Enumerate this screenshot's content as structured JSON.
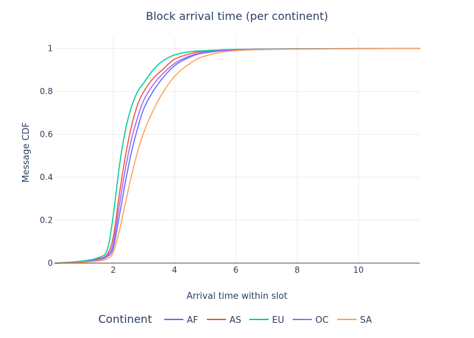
{
  "chart_data": {
    "type": "line",
    "title": "Block arrival time (per continent)",
    "xlabel": "Arrival time within slot",
    "ylabel": "Message CDF",
    "xlim": [
      0.1,
      12
    ],
    "ylim": [
      0,
      1.05
    ],
    "xticks": [
      2,
      4,
      6,
      8,
      10
    ],
    "yticks": [
      0,
      0.2,
      0.4,
      0.6,
      0.8,
      1
    ],
    "xtick_labels": [
      "2",
      "4",
      "6",
      "8",
      "10"
    ],
    "ytick_labels": [
      "0",
      "0.2",
      "0.4",
      "0.6",
      "0.8",
      "1"
    ],
    "grid": true,
    "legend": {
      "title": "Continent",
      "placement": "bottom"
    },
    "series": [
      {
        "name": "AF",
        "color": "#636efa",
        "x": [
          0.1,
          1.0,
          1.5,
          1.8,
          2.0,
          2.2,
          2.4,
          2.6,
          2.8,
          3.0,
          3.3,
          3.6,
          4.0,
          4.5,
          5.0,
          6.0,
          8.0,
          12.0
        ],
        "y": [
          0,
          0.005,
          0.015,
          0.03,
          0.07,
          0.22,
          0.38,
          0.52,
          0.63,
          0.72,
          0.8,
          0.86,
          0.92,
          0.96,
          0.98,
          0.993,
          0.998,
          1.0
        ]
      },
      {
        "name": "AS",
        "color": "#ef553b",
        "x": [
          0.1,
          1.0,
          1.5,
          1.8,
          2.0,
          2.2,
          2.4,
          2.6,
          2.8,
          3.0,
          3.3,
          3.6,
          4.0,
          4.5,
          5.0,
          6.0,
          8.0,
          12.0
        ],
        "y": [
          0,
          0.007,
          0.02,
          0.04,
          0.12,
          0.32,
          0.5,
          0.64,
          0.74,
          0.8,
          0.86,
          0.9,
          0.95,
          0.975,
          0.988,
          0.995,
          0.999,
          1.0
        ]
      },
      {
        "name": "EU",
        "color": "#00cc96",
        "x": [
          0.1,
          1.0,
          1.5,
          1.8,
          2.0,
          2.2,
          2.4,
          2.6,
          2.8,
          3.0,
          3.3,
          3.6,
          4.0,
          4.5,
          5.0,
          6.0,
          8.0,
          12.0
        ],
        "y": [
          0,
          0.01,
          0.025,
          0.06,
          0.22,
          0.45,
          0.62,
          0.73,
          0.8,
          0.84,
          0.9,
          0.94,
          0.97,
          0.985,
          0.99,
          0.996,
          0.999,
          1.0
        ]
      },
      {
        "name": "OC",
        "color": "#ab63fa",
        "x": [
          0.1,
          1.0,
          1.5,
          1.8,
          2.0,
          2.2,
          2.4,
          2.6,
          2.8,
          3.0,
          3.3,
          3.6,
          4.0,
          4.5,
          5.0,
          6.0,
          8.0,
          12.0
        ],
        "y": [
          0,
          0.006,
          0.017,
          0.035,
          0.09,
          0.27,
          0.44,
          0.58,
          0.68,
          0.76,
          0.83,
          0.88,
          0.93,
          0.965,
          0.983,
          0.994,
          0.998,
          1.0
        ]
      },
      {
        "name": "SA",
        "color": "#ffa15a",
        "x": [
          0.1,
          1.0,
          1.5,
          1.8,
          2.0,
          2.2,
          2.4,
          2.6,
          2.8,
          3.0,
          3.3,
          3.6,
          4.0,
          4.5,
          5.0,
          6.0,
          8.0,
          12.0
        ],
        "y": [
          0,
          0.004,
          0.01,
          0.02,
          0.05,
          0.15,
          0.28,
          0.41,
          0.52,
          0.61,
          0.71,
          0.79,
          0.87,
          0.93,
          0.965,
          0.99,
          0.997,
          1.0
        ]
      }
    ]
  }
}
